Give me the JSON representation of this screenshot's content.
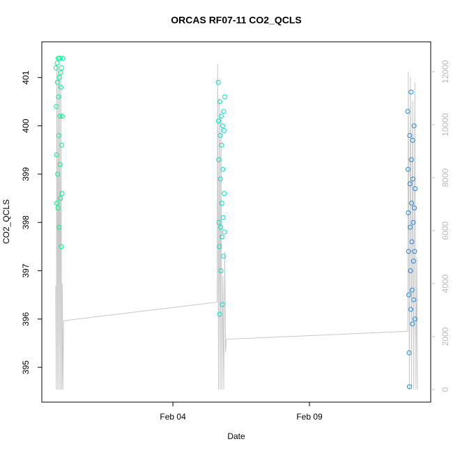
{
  "chart_data": {
    "type": "scatter",
    "title": "ORCAS RF07-11 CO2_QCLS",
    "x_label": "Date",
    "y_label": "CO2_QCLS",
    "xlim": [
      -0.8,
      13.44
    ],
    "xticks": [
      {
        "value": 4,
        "label": "Feb 04"
      },
      {
        "value": 9,
        "label": "Feb 09"
      }
    ],
    "ylim": [
      394.28,
      401.74
    ],
    "yticks": [
      395,
      396,
      397,
      398,
      399,
      400,
      401
    ],
    "y2lim": [
      -474,
      13132
    ],
    "y2ticks": [
      0,
      2000,
      4000,
      6000,
      8000,
      10000,
      12000
    ],
    "series": [
      {
        "color": "#00f28a",
        "x": [
          -0.28,
          -0.27,
          -0.26,
          -0.25,
          -0.24,
          -0.23,
          -0.22,
          -0.21,
          -0.2,
          -0.19,
          -0.18,
          -0.17,
          -0.16,
          -0.15,
          -0.14,
          -0.13,
          -0.12,
          -0.11,
          -0.1,
          -0.09,
          -0.08,
          -0.07,
          -0.06,
          -0.05,
          -0.04
        ],
        "values": [
          401.2,
          400.4,
          399.4,
          398.4,
          401.3,
          400.9,
          399.0,
          398.3,
          401.4,
          400.6,
          399.8,
          397.9,
          401.0,
          401.4,
          400.2,
          399.2,
          398.5,
          401.1,
          400.8,
          397.5,
          401.2,
          399.6,
          398.6,
          400.2,
          401.4
        ]
      },
      {
        "color": "#00e0c8",
        "x": [
          5.66,
          5.67,
          5.68,
          5.69,
          5.7,
          5.71,
          5.72,
          5.73,
          5.74,
          5.75,
          5.76,
          5.77,
          5.78,
          5.79,
          5.8,
          5.81,
          5.82,
          5.83,
          5.84,
          5.85,
          5.86,
          5.87,
          5.88,
          5.89,
          5.9
        ],
        "values": [
          400.9,
          400.1,
          399.3,
          398.0,
          397.5,
          396.1,
          400.5,
          399.8,
          398.9,
          397.9,
          397.0,
          400.2,
          399.6,
          398.4,
          397.7,
          396.3,
          400.0,
          399.1,
          398.1,
          397.3,
          400.3,
          399.9,
          398.6,
          397.8,
          400.6
        ]
      },
      {
        "color": "#1e88e5",
        "x": [
          12.6,
          12.61,
          12.62,
          12.63,
          12.64,
          12.65,
          12.66,
          12.67,
          12.68,
          12.69,
          12.7,
          12.71,
          12.72,
          12.73,
          12.74,
          12.75,
          12.76,
          12.77,
          12.78,
          12.79,
          12.8,
          12.81,
          12.82,
          12.83,
          12.84,
          12.85,
          12.86,
          12.87
        ],
        "values": [
          400.3,
          399.1,
          398.2,
          397.4,
          396.5,
          395.3,
          394.6,
          399.8,
          398.8,
          397.9,
          397.0,
          396.2,
          400.7,
          399.3,
          398.4,
          397.6,
          396.6,
          395.9,
          399.7,
          398.9,
          398.0,
          397.2,
          396.4,
          400.0,
          398.3,
          397.4,
          396.0,
          398.7
        ]
      },
      {
        "color": "#c8c8c8",
        "axis": "y2",
        "x": [
          -0.29,
          -0.27,
          -0.25,
          -0.22,
          -0.2,
          -0.17,
          -0.15,
          -0.12,
          -0.1,
          -0.07,
          -0.05,
          -0.03,
          0.0,
          5.62,
          5.64,
          5.67,
          5.7,
          5.73,
          5.76,
          5.79,
          5.83,
          5.86,
          5.9,
          5.93,
          5.96,
          12.6,
          12.62,
          12.66,
          12.7,
          12.74,
          12.78,
          12.82,
          12.86,
          12.9,
          12.93,
          12.96
        ],
        "values": [
          3900,
          0,
          12300,
          0,
          12200,
          0,
          11800,
          0,
          12000,
          0,
          4000,
          0,
          2600,
          3300,
          12300,
          0,
          11000,
          0,
          10500,
          0,
          4300,
          0,
          5200,
          1400,
          1900,
          2200,
          12000,
          0,
          11800,
          0,
          10900,
          0,
          11600,
          0,
          5000,
          0
        ]
      }
    ]
  }
}
